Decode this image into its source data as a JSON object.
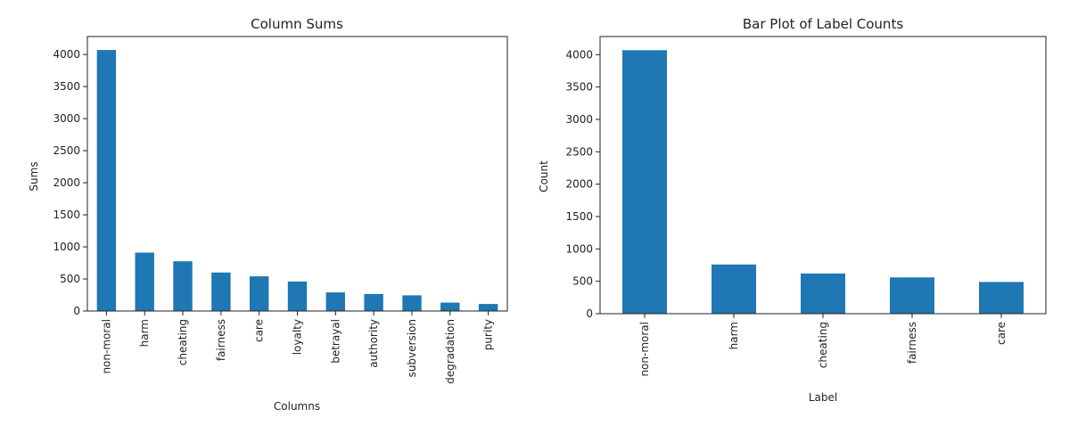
{
  "chart_data": [
    {
      "type": "bar",
      "title": "Column Sums",
      "xlabel": "Columns",
      "ylabel": "Sums",
      "categories": [
        "non-moral",
        "harm",
        "cheating",
        "fairness",
        "care",
        "loyalty",
        "betrayal",
        "authority",
        "subversion",
        "degradation",
        "purity"
      ],
      "values": [
        4070,
        910,
        775,
        600,
        540,
        460,
        290,
        265,
        245,
        130,
        110
      ],
      "ylim": [
        0,
        4280
      ],
      "yticks": [
        0,
        500,
        1000,
        1500,
        2000,
        2500,
        3000,
        3500,
        4000
      ],
      "grid": false,
      "legend": "none",
      "bar_color": "#1f77b4"
    },
    {
      "type": "bar",
      "title": "Bar Plot of Label Counts",
      "xlabel": "Label",
      "ylabel": "Count",
      "categories": [
        "non-moral",
        "harm",
        "cheating",
        "fairness",
        "care"
      ],
      "values": [
        4070,
        760,
        620,
        560,
        490
      ],
      "ylim": [
        0,
        4280
      ],
      "yticks": [
        0,
        500,
        1000,
        1500,
        2000,
        2500,
        3000,
        3500,
        4000
      ],
      "grid": false,
      "legend": "none",
      "bar_color": "#1f77b4"
    }
  ]
}
